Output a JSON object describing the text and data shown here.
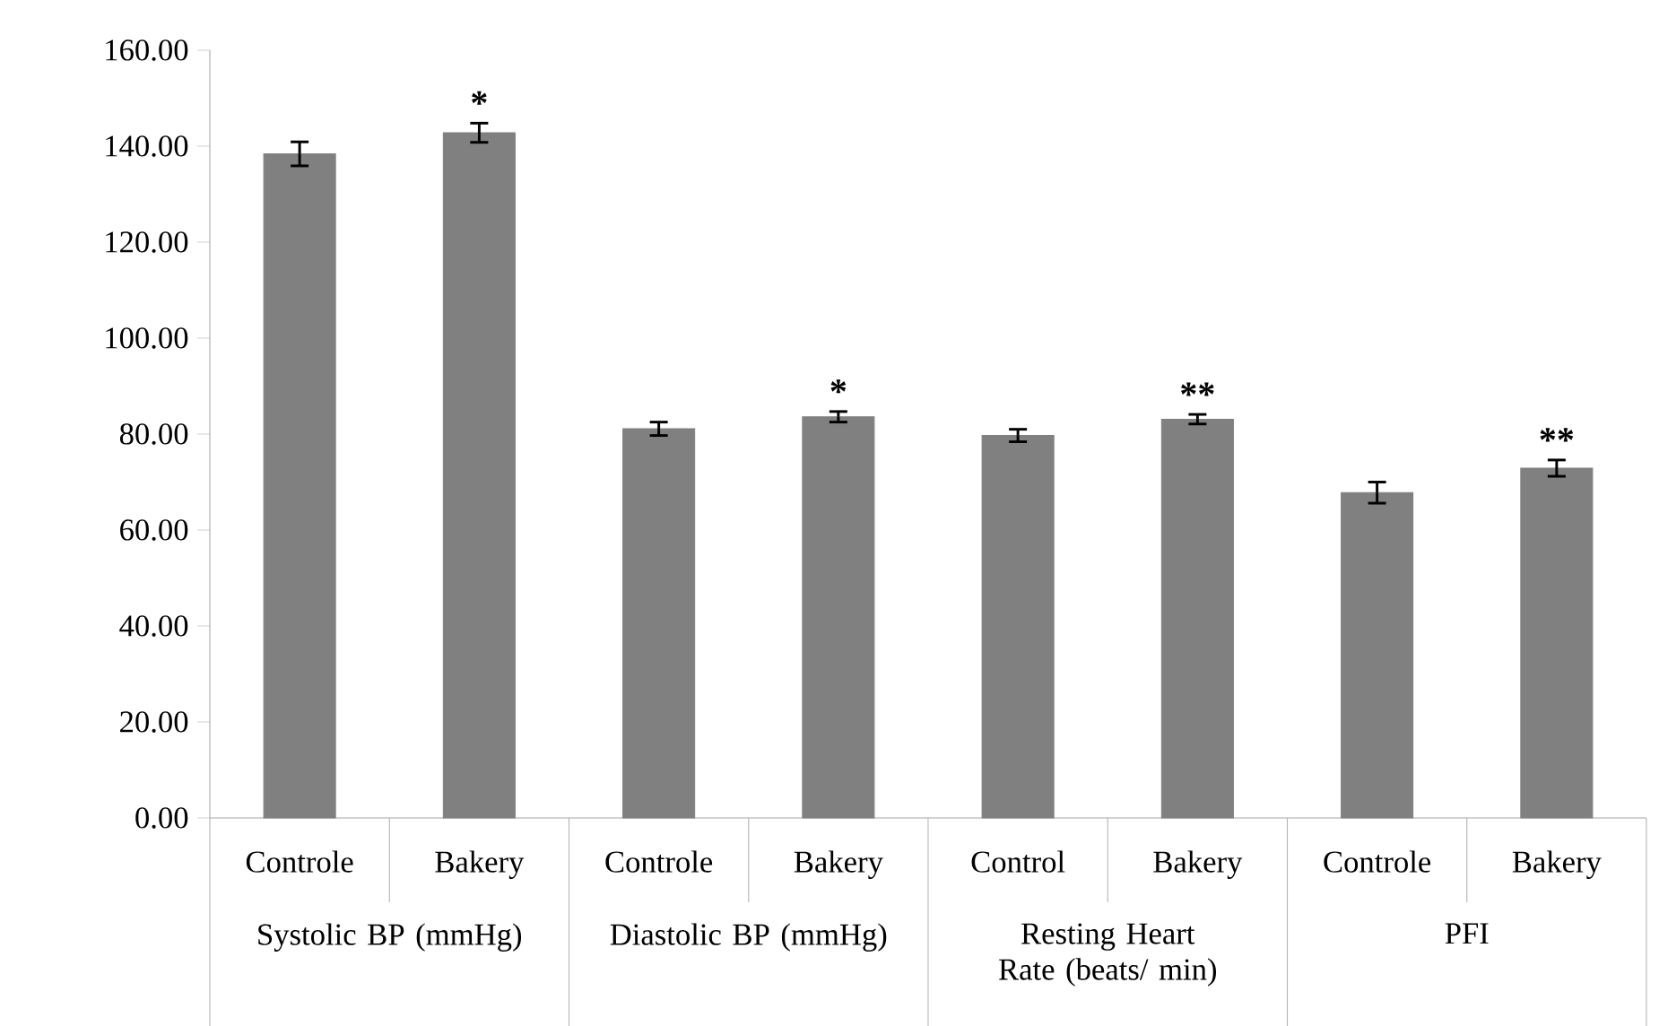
{
  "chart_data": {
    "type": "bar",
    "categories": [
      "Controle",
      "Bakery",
      "Controle",
      "Bakery",
      "Control",
      "Bakery",
      "Controle",
      "Bakery"
    ],
    "values": [
      138.4,
      142.8,
      81.1,
      83.6,
      79.7,
      83.1,
      67.8,
      72.9
    ],
    "errors": [
      2.5,
      2.0,
      1.4,
      1.1,
      1.3,
      1.0,
      2.2,
      1.7
    ],
    "value_labels": [
      null,
      "*",
      null,
      "*",
      null,
      "**",
      null,
      "**"
    ],
    "color": "#808080",
    "ylim": [
      0,
      160
    ],
    "yticks": [
      {
        "value": 0,
        "label": "0.00"
      },
      {
        "value": 20,
        "label": "20.00"
      },
      {
        "value": 40,
        "label": "40.00"
      },
      {
        "value": 60,
        "label": "60.00"
      },
      {
        "value": 80,
        "label": "80.00"
      },
      {
        "value": 100,
        "label": "100.00"
      },
      {
        "value": 120,
        "label": "120.00"
      },
      {
        "value": 140,
        "label": "140.00"
      },
      {
        "value": 160,
        "label": "160.00"
      }
    ],
    "grid": false,
    "annotations": [
      "Systolic BP (mmHg)",
      "Diastolic BP (mmHg)",
      "Resting Heart Rate (beats/ min)",
      "PFI"
    ]
  }
}
